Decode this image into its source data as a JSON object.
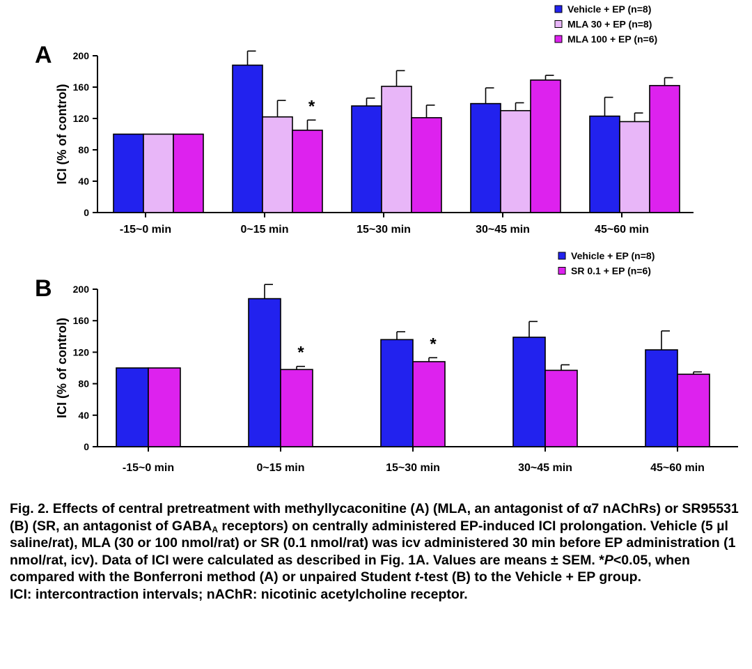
{
  "chart_data": [
    {
      "panel_label": "A",
      "type": "bar",
      "ylabel": "ICI (% of control)",
      "ylim": [
        0,
        200
      ],
      "yticks": [
        "0",
        "40",
        "80",
        "120",
        "160",
        "200"
      ],
      "categories": [
        "-15~0 min",
        "0~15 min",
        "15~30 min",
        "30~45 min",
        "45~60 min"
      ],
      "legend_position": "top-right",
      "series": [
        {
          "name": "Vehicle + EP (n=8)",
          "color": "#2222ee",
          "values": [
            100,
            188,
            136,
            139,
            123
          ],
          "sem": [
            0,
            18,
            10,
            20,
            24
          ]
        },
        {
          "name": "MLA 30 + EP (n=8)",
          "color": "#e8b6f8",
          "values": [
            100,
            122,
            161,
            130,
            116
          ],
          "sem": [
            0,
            21,
            20,
            10,
            11
          ]
        },
        {
          "name": "MLA 100 + EP (n=6)",
          "color": "#dd22ee",
          "values": [
            100,
            105,
            121,
            169,
            162
          ],
          "sem": [
            0,
            13,
            16,
            6,
            10
          ]
        }
      ],
      "significance": [
        {
          "category_index": 1,
          "series_index": 2,
          "mark": "*"
        }
      ]
    },
    {
      "panel_label": "B",
      "type": "bar",
      "ylabel": "ICI (% of control)",
      "ylim": [
        0,
        200
      ],
      "yticks": [
        "0",
        "40",
        "80",
        "120",
        "160",
        "200"
      ],
      "categories": [
        "-15~0 min",
        "0~15 min",
        "15~30 min",
        "30~45 min",
        "45~60 min"
      ],
      "legend_position": "top-right",
      "series": [
        {
          "name": "Vehicle + EP (n=8)",
          "color": "#2222ee",
          "values": [
            100,
            188,
            136,
            139,
            123
          ],
          "sem": [
            0,
            18,
            10,
            20,
            24
          ]
        },
        {
          "name": "SR 0.1 + EP (n=6)",
          "color": "#dd22ee",
          "values": [
            100,
            98,
            108,
            97,
            92
          ],
          "sem": [
            0,
            4,
            5,
            7,
            3
          ]
        }
      ],
      "significance": [
        {
          "category_index": 1,
          "series_index": 1,
          "mark": "*"
        },
        {
          "category_index": 2,
          "series_index": 1,
          "mark": "*"
        }
      ]
    }
  ],
  "caption": {
    "part1": "Fig. 2. Effects of central pretreatment with methyllycaconitine (A) (MLA, an antagonist of α7 nAChRs) or SR95531 (B) (SR, an antagonist of GABA",
    "sub_A": "A",
    "part2": " receptors) on centrally administered EP-induced ICI prolongation.  Vehicle (5 µl saline/rat), MLA (30 or 100 nmol/rat) or SR (0.1 nmol/rat) was icv administered 30 min before EP administration (1 nmol/rat, icv).  Data of ICI were calculated as described in Fig. 1A.  Values are means ± SEM.  *",
    "p_italic": "P",
    "part3": "<0.05, when compared with the Bonferroni method (A) or unpaired Student ",
    "t_italic": "t",
    "part4": "-test (B) to the Vehicle + EP group.",
    "line2": "ICI: intercontraction intervals; nAChR: nicotinic acetylcholine receptor."
  }
}
